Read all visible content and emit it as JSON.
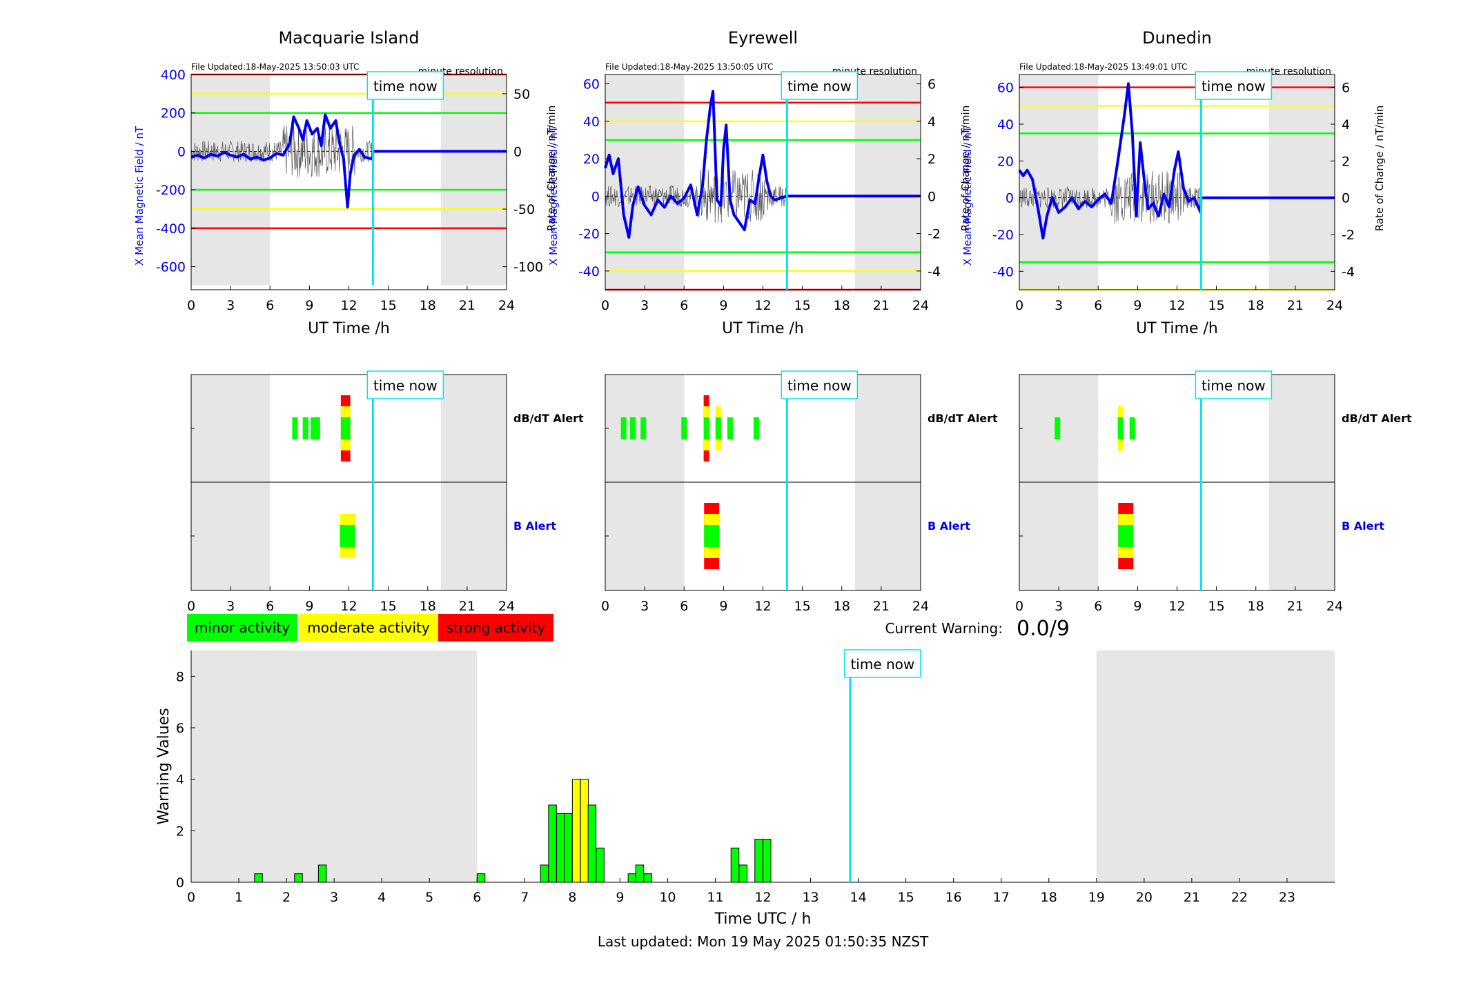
{
  "stations": [
    {
      "name": "Macquarie Island",
      "file_updated": "File Updated:18-May-2025 13:50:03 UTC",
      "resolution": "minute resolution",
      "ylabel_left": "X Mean Magnetic Field / nT",
      "ylabel_right": "Rate of Change / nT/min",
      "ylim_left": [
        -720,
        400
      ],
      "ylim_right": [
        -120,
        66.7
      ],
      "yticks_left": [
        "400",
        "200",
        "0",
        "-200",
        "-400",
        "-600"
      ],
      "yticks_right": [
        "50",
        "0",
        "-50",
        "-100"
      ],
      "thresholds": {
        "green": 200,
        "yellow": 300,
        "red": 400
      },
      "dbdt_alert": [
        [
          7.9,
          "green"
        ],
        [
          8.7,
          "green"
        ],
        [
          9.3,
          "green"
        ],
        [
          9.6,
          "green"
        ],
        [
          11.6,
          "red"
        ],
        [
          11.9,
          "red"
        ]
      ],
      "b_alert": [
        [
          11.9,
          "yellow"
        ]
      ]
    },
    {
      "name": "Eyrewell",
      "file_updated": "File Updated:18-May-2025 13:50:05 UTC",
      "resolution": "minute resolution",
      "ylabel_left": "X Mean Magnetic Field / nT",
      "ylabel_right": "Rate of Change / nT/min",
      "ylim_left": [
        -50,
        65
      ],
      "ylim_right": [
        -5,
        6.5
      ],
      "yticks_left": [
        "60",
        "40",
        "20",
        "0",
        "-20",
        "-40"
      ],
      "yticks_right": [
        "6",
        "4",
        "2",
        "0",
        "-2",
        "-4"
      ],
      "thresholds": {
        "green": 30,
        "yellow": 40,
        "red": 50
      },
      "dbdt_alert": [
        [
          1.4,
          "green"
        ],
        [
          2.1,
          "green"
        ],
        [
          2.9,
          "green"
        ],
        [
          6.0,
          "green"
        ],
        [
          7.7,
          "red"
        ],
        [
          8.6,
          "yellow"
        ],
        [
          9.5,
          "green"
        ],
        [
          11.5,
          "green"
        ]
      ],
      "b_alert": [
        [
          8.1,
          "red"
        ]
      ]
    },
    {
      "name": "Dunedin",
      "file_updated": "File Updated:18-May-2025 13:49:01 UTC",
      "resolution": "minute resolution",
      "ylabel_left": "X Mean Magnetic Field / nT",
      "ylabel_right": "Rate of Change / nT/min",
      "ylim_left": [
        -50,
        67
      ],
      "ylim_right": [
        -5,
        6.7
      ],
      "yticks_left": [
        "60",
        "40",
        "20",
        "0",
        "-20",
        "-40"
      ],
      "yticks_right": [
        "6",
        "4",
        "2",
        "0",
        "-2",
        "-4"
      ],
      "thresholds": {
        "green": 35,
        "yellow": 50,
        "red": 60
      },
      "dbdt_alert": [
        [
          2.9,
          "green"
        ],
        [
          7.7,
          "yellow"
        ],
        [
          8.6,
          "green"
        ]
      ],
      "b_alert": [
        [
          8.1,
          "red"
        ]
      ]
    }
  ],
  "labels": {
    "xlabel_ut": "UT Time /h",
    "time_now": "time now",
    "dbdt_alert": "dB/dT Alert",
    "b_alert": "B Alert",
    "current_warning_label": "Current Warning:",
    "current_warning_value": "0.0/9",
    "last_updated": "Last updated: Mon 19 May 2025 01:50:35 NZST"
  },
  "xticks_station": [
    "0",
    "3",
    "6",
    "9",
    "12",
    "15",
    "18",
    "21",
    "24"
  ],
  "legend": [
    {
      "label": "minor activity",
      "color": "#00ff00"
    },
    {
      "label": "moderate activity",
      "color": "#ffff00"
    },
    {
      "label": "strong activity",
      "color": "#ff0000"
    }
  ],
  "colors": {
    "field_line": "#0000ee",
    "rate_line": "#555555",
    "time_now_line": "#00e5ee",
    "night_shade": "#e6e6e6",
    "green": "#00ff00",
    "yellow": "#ffff00",
    "red": "#ff0000"
  },
  "time_now_hour": 13.83,
  "night_shading": [
    [
      0,
      6
    ],
    [
      19,
      24
    ]
  ],
  "chart_data": {
    "type": "bar",
    "xlabel": "Time UTC / h",
    "ylabel": "Warning Values",
    "xlim": [
      0,
      24
    ],
    "ylim": [
      0,
      9
    ],
    "xticks": [
      "0",
      "1",
      "2",
      "3",
      "4",
      "5",
      "6",
      "7",
      "8",
      "9",
      "10",
      "11",
      "12",
      "13",
      "14",
      "15",
      "16",
      "17",
      "18",
      "19",
      "20",
      "21",
      "22",
      "23"
    ],
    "yticks": [
      "0",
      "2",
      "4",
      "6",
      "8"
    ],
    "bar_width_h": 0.1667,
    "bars": [
      {
        "t": 1.33,
        "v": 0.33,
        "c": "green"
      },
      {
        "t": 2.17,
        "v": 0.33,
        "c": "green"
      },
      {
        "t": 2.67,
        "v": 0.67,
        "c": "green"
      },
      {
        "t": 6.0,
        "v": 0.33,
        "c": "green"
      },
      {
        "t": 7.33,
        "v": 0.67,
        "c": "green"
      },
      {
        "t": 7.5,
        "v": 3.0,
        "c": "green"
      },
      {
        "t": 7.67,
        "v": 2.67,
        "c": "green"
      },
      {
        "t": 7.83,
        "v": 2.67,
        "c": "green"
      },
      {
        "t": 8.0,
        "v": 4.0,
        "c": "yellow"
      },
      {
        "t": 8.17,
        "v": 4.0,
        "c": "yellow"
      },
      {
        "t": 8.33,
        "v": 3.0,
        "c": "green"
      },
      {
        "t": 8.5,
        "v": 1.33,
        "c": "green"
      },
      {
        "t": 9.17,
        "v": 0.33,
        "c": "green"
      },
      {
        "t": 9.33,
        "v": 0.67,
        "c": "green"
      },
      {
        "t": 9.5,
        "v": 0.33,
        "c": "green"
      },
      {
        "t": 11.33,
        "v": 1.33,
        "c": "green"
      },
      {
        "t": 11.5,
        "v": 0.67,
        "c": "green"
      },
      {
        "t": 11.83,
        "v": 1.67,
        "c": "green"
      },
      {
        "t": 12.0,
        "v": 1.67,
        "c": "green"
      }
    ],
    "series_field": [
      [
        [
          0,
          -30
        ],
        [
          0.5,
          -20
        ],
        [
          1,
          -35
        ],
        [
          1.5,
          -15
        ],
        [
          2,
          -25
        ],
        [
          2.5,
          -5
        ],
        [
          3,
          -20
        ],
        [
          3.5,
          -30
        ],
        [
          4,
          -15
        ],
        [
          4.5,
          -40
        ],
        [
          5,
          -30
        ],
        [
          5.5,
          -45
        ],
        [
          6,
          -35
        ],
        [
          6.5,
          -10
        ],
        [
          7,
          -20
        ],
        [
          7.5,
          40
        ],
        [
          7.8,
          180
        ],
        [
          8.2,
          120
        ],
        [
          8.5,
          60
        ],
        [
          8.8,
          160
        ],
        [
          9.2,
          90
        ],
        [
          9.6,
          120
        ],
        [
          9.9,
          30
        ],
        [
          10.2,
          190
        ],
        [
          10.6,
          120
        ],
        [
          11,
          160
        ],
        [
          11.3,
          40
        ],
        [
          11.6,
          -40
        ],
        [
          11.9,
          -290
        ],
        [
          12.1,
          -120
        ],
        [
          12.4,
          -20
        ],
        [
          12.8,
          10
        ],
        [
          13.2,
          -30
        ],
        [
          13.8,
          -40
        ],
        [
          13.83,
          0
        ],
        [
          24,
          0
        ]
      ],
      [
        [
          0,
          15
        ],
        [
          0.3,
          22
        ],
        [
          0.6,
          12
        ],
        [
          1,
          20
        ],
        [
          1.4,
          -10
        ],
        [
          1.8,
          -22
        ],
        [
          2.1,
          -5
        ],
        [
          2.5,
          5
        ],
        [
          3,
          -5
        ],
        [
          3.5,
          -10
        ],
        [
          4,
          -2
        ],
        [
          4.5,
          -6
        ],
        [
          5,
          0
        ],
        [
          5.5,
          -4
        ],
        [
          6,
          -1
        ],
        [
          6.5,
          6
        ],
        [
          7,
          -10
        ],
        [
          7.4,
          5
        ],
        [
          7.7,
          30
        ],
        [
          8.0,
          48
        ],
        [
          8.2,
          56
        ],
        [
          8.5,
          -2
        ],
        [
          8.8,
          -5
        ],
        [
          9.0,
          25
        ],
        [
          9.2,
          38
        ],
        [
          9.5,
          -2
        ],
        [
          9.8,
          -10
        ],
        [
          10.2,
          -14
        ],
        [
          10.6,
          -18
        ],
        [
          11,
          -2
        ],
        [
          11.4,
          -4
        ],
        [
          11.7,
          10
        ],
        [
          12,
          22
        ],
        [
          12.3,
          8
        ],
        [
          12.6,
          0
        ],
        [
          12.9,
          -2
        ],
        [
          13.83,
          0
        ],
        [
          24,
          0
        ]
      ],
      [
        [
          0,
          15
        ],
        [
          0.3,
          12
        ],
        [
          0.6,
          15
        ],
        [
          1,
          10
        ],
        [
          1.4,
          -5
        ],
        [
          1.8,
          -22
        ],
        [
          2.1,
          -10
        ],
        [
          2.5,
          0
        ],
        [
          3,
          -8
        ],
        [
          3.5,
          -5
        ],
        [
          4,
          0
        ],
        [
          4.5,
          -6
        ],
        [
          5,
          -2
        ],
        [
          5.5,
          -5
        ],
        [
          6,
          -1
        ],
        [
          6.5,
          2
        ],
        [
          7,
          -3
        ],
        [
          7.5,
          20
        ],
        [
          8,
          45
        ],
        [
          8.3,
          62
        ],
        [
          8.6,
          35
        ],
        [
          8.9,
          -10
        ],
        [
          9.2,
          30
        ],
        [
          9.5,
          10
        ],
        [
          9.8,
          -6
        ],
        [
          10.2,
          -3
        ],
        [
          10.6,
          -10
        ],
        [
          11,
          2
        ],
        [
          11.4,
          -5
        ],
        [
          11.8,
          15
        ],
        [
          12.1,
          25
        ],
        [
          12.5,
          5
        ],
        [
          12.9,
          -2
        ],
        [
          13.3,
          0
        ],
        [
          13.8,
          -8
        ],
        [
          13.83,
          0
        ],
        [
          24,
          0
        ]
      ]
    ]
  }
}
